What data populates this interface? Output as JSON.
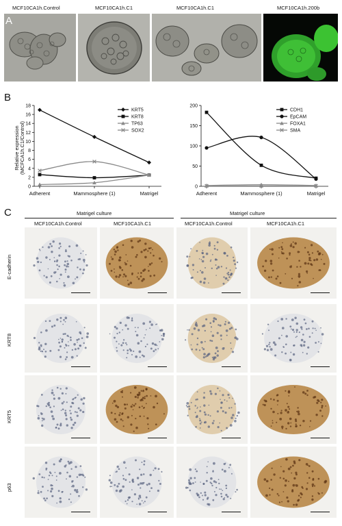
{
  "panelA": {
    "letter": "A",
    "titles": [
      "MCF10CA1h.Control",
      "MCF10CA1h.C1",
      "MCF10CA1h.C1",
      "MCF10CA1h.200b"
    ]
  },
  "panelB": {
    "letter": "B",
    "ylabel_line1": "Relative expression",
    "ylabel_line2": "(MCFCA1h.C1/Control)"
  },
  "chart_data": [
    {
      "type": "line",
      "categories": [
        "Adherent",
        "Mammosphere (1)",
        "Matrigel"
      ],
      "ylabel": "Relative expression (MCFCA1h.C1/Control)",
      "ylim": [
        0,
        18
      ],
      "yticks": [
        0,
        2,
        4,
        6,
        8,
        10,
        12,
        14,
        16,
        18
      ],
      "legend_position": "top-right",
      "series": [
        {
          "name": "KRT5",
          "color": "#111111",
          "marker": "diamond",
          "values": [
            17.0,
            11.0,
            5.3
          ]
        },
        {
          "name": "KRT8",
          "color": "#111111",
          "marker": "square",
          "values": [
            2.6,
            1.9,
            2.5
          ]
        },
        {
          "name": "TP63",
          "color": "#8a8a8a",
          "marker": "triangle",
          "values": [
            0.4,
            0.8,
            2.5
          ]
        },
        {
          "name": "SOX2",
          "color": "#8a8a8a",
          "marker": "x",
          "values": [
            3.5,
            5.5,
            2.5
          ]
        }
      ]
    },
    {
      "type": "line",
      "categories": [
        "Adherent",
        "Mammosphere (1)",
        "Matrigel"
      ],
      "ylim": [
        0,
        200
      ],
      "yticks": [
        0,
        50,
        100,
        150,
        200
      ],
      "legend_position": "top-right",
      "series": [
        {
          "name": "CDH1",
          "color": "#111111",
          "marker": "square",
          "values": [
            183,
            52,
            20
          ]
        },
        {
          "name": "EpCAM",
          "color": "#111111",
          "marker": "circle",
          "values": [
            95,
            121,
            18
          ]
        },
        {
          "name": "FOXA1",
          "color": "#8a8a8a",
          "marker": "triangle",
          "values": [
            2,
            4,
            2
          ]
        },
        {
          "name": "SMA",
          "color": "#8a8a8a",
          "marker": "x",
          "values": [
            1,
            1,
            1
          ]
        }
      ]
    }
  ],
  "panelC": {
    "letter": "C",
    "group_title_left": "Matrigel culture",
    "group_title_right": "Matrigel culture",
    "col_titles": [
      "MCF10CA1h.Control",
      "MCF10CA1h.C1",
      "MCF10CA1h.Control",
      "MCF10CA1h.C1"
    ],
    "row_labels": [
      "E-cadherin",
      "KRT8",
      "KRT5",
      "p63"
    ]
  }
}
